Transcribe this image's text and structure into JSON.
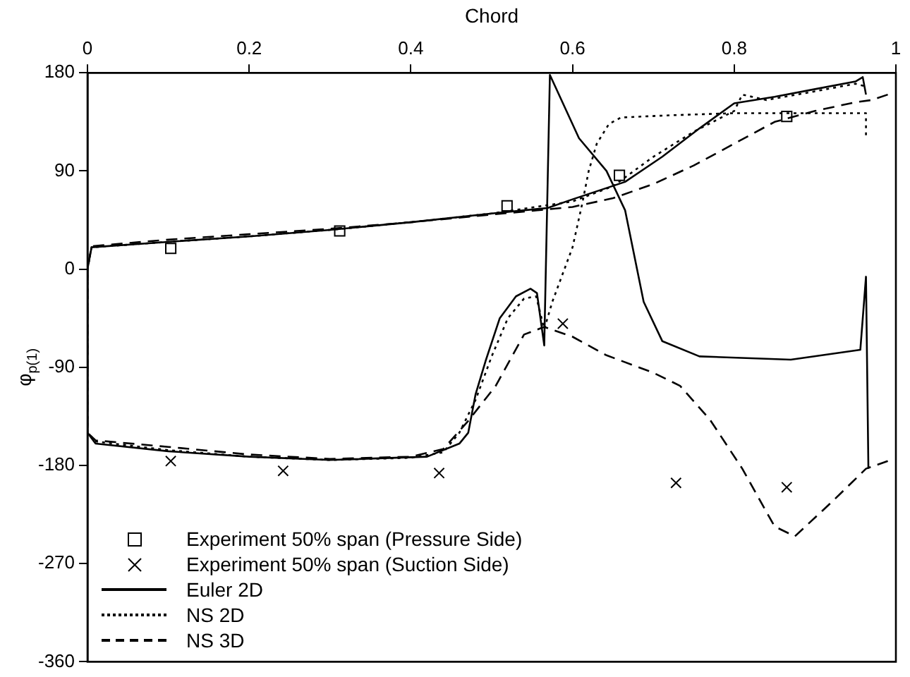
{
  "chart_data": {
    "type": "line",
    "xlabel": "Chord",
    "ylabel": "φ$_{p(1)}$",
    "xlim": [
      0,
      1
    ],
    "ylim": [
      -360,
      180
    ],
    "xticks": [
      0,
      0.2,
      0.4,
      0.6,
      0.8,
      1
    ],
    "yticks": [
      -360,
      -270,
      -180,
      -90,
      0,
      90,
      180
    ],
    "grid": false,
    "legend": "bottom left",
    "series": [
      {
        "name": "Experiment 50% span (Pressure Side)",
        "type": "scatter",
        "marker": "square",
        "color": "#000000",
        "x": [
          0.103,
          0.312,
          0.519,
          0.658,
          0.865
        ],
        "values": [
          19,
          35,
          58,
          86,
          140
        ]
      },
      {
        "name": "Experiment 50% span (Suction Side)",
        "type": "scatter",
        "marker": "cross",
        "color": "#000000",
        "x": [
          0.103,
          0.242,
          0.435,
          0.588,
          0.728,
          0.865
        ],
        "values": [
          -176,
          -185,
          -187,
          -50,
          -196,
          -200
        ]
      },
      {
        "name": "Euler 2D",
        "type": "line",
        "line_style": "solid",
        "color": "#000000",
        "x": [
          0.963,
          0.959,
          0.95,
          0.9,
          0.85,
          0.8,
          0.757,
          0.711,
          0.665,
          0.6,
          0.569,
          0.5,
          0.4,
          0.3,
          0.2,
          0.1,
          0.005,
          0,
          0,
          0.01,
          0.1,
          0.2,
          0.3,
          0.42,
          0.46,
          0.471,
          0.48,
          0.493,
          0.51,
          0.53,
          0.548,
          0.556,
          0.565,
          0.572,
          0.608,
          0.642,
          0.665,
          0.688,
          0.711,
          0.757,
          0.87,
          0.956,
          0.963,
          0.966
        ],
        "values": [
          160,
          176,
          172,
          165,
          158,
          152,
          129,
          103,
          80,
          64,
          56,
          51,
          43,
          36,
          30,
          25,
          20,
          0,
          -150,
          -160,
          -167,
          -172,
          -175,
          -172,
          -160,
          -150,
          -115,
          -83,
          -45,
          -25,
          -18,
          -22,
          -70,
          178,
          120,
          90,
          54,
          -30,
          -66,
          -80,
          -83,
          -74,
          -7,
          -183
        ]
      },
      {
        "name": "NS 2D",
        "type": "line",
        "line_style": "dotted",
        "color": "#000000",
        "x": [
          0.96,
          0.95,
          0.9,
          0.84,
          0.81,
          0.8,
          0.75,
          0.7,
          0.65,
          0.6,
          0.5,
          0.4,
          0.3,
          0.2,
          0.1,
          0.005,
          0,
          0,
          0.01,
          0.1,
          0.2,
          0.3,
          0.4,
          0.44,
          0.46,
          0.48,
          0.5,
          0.52,
          0.54,
          0.555,
          0.565,
          0.575,
          0.585,
          0.6,
          0.612,
          0.62,
          0.63,
          0.645,
          0.66,
          0.72,
          0.8,
          0.9,
          0.963,
          0.963
        ],
        "values": [
          168,
          170,
          163,
          155,
          160,
          145,
          126,
          103,
          76,
          62,
          51,
          43,
          36,
          30,
          25,
          20,
          0,
          -150,
          -158,
          -166,
          -172,
          -175,
          -173,
          -168,
          -150,
          -120,
          -80,
          -45,
          -27,
          -25,
          -55,
          -30,
          -10,
          20,
          60,
          90,
          115,
          133,
          139,
          141,
          143,
          143,
          143,
          120
        ]
      },
      {
        "name": "NS 3D",
        "type": "line",
        "line_style": "dashed",
        "color": "#000000",
        "x": [
          0.99,
          0.97,
          0.95,
          0.9,
          0.85,
          0.8,
          0.75,
          0.7,
          0.65,
          0.6,
          0.5,
          0.4,
          0.3,
          0.2,
          0.1,
          0.005,
          0,
          0,
          0.01,
          0.1,
          0.2,
          0.3,
          0.4,
          0.44,
          0.47,
          0.505,
          0.54,
          0.565,
          0.6,
          0.642,
          0.7,
          0.733,
          0.77,
          0.81,
          0.85,
          0.875,
          0.92,
          0.963,
          0.99
        ],
        "values": [
          160,
          155,
          153,
          145,
          135,
          115,
          95,
          78,
          65,
          57,
          50,
          43,
          37,
          32,
          27,
          21,
          0,
          -150,
          -157,
          -163,
          -170,
          -174,
          -172,
          -165,
          -140,
          -107,
          -60,
          -53,
          -62,
          -79,
          -95,
          -107,
          -138,
          -183,
          -236,
          -245,
          -214,
          -183,
          -176
        ]
      }
    ]
  }
}
